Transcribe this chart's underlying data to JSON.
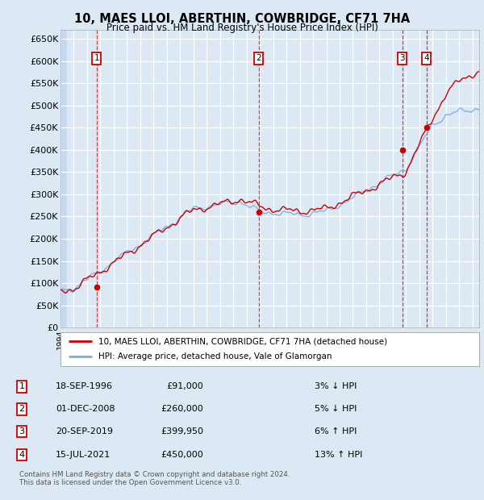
{
  "title": "10, MAES LLOI, ABERTHIN, COWBRIDGE, CF71 7HA",
  "subtitle": "Price paid vs. HM Land Registry's House Price Index (HPI)",
  "ylim": [
    0,
    670000
  ],
  "xlim_start": 1994.0,
  "xlim_end": 2025.5,
  "yticks": [
    0,
    50000,
    100000,
    150000,
    200000,
    250000,
    300000,
    350000,
    400000,
    450000,
    500000,
    550000,
    600000,
    650000
  ],
  "ytick_labels": [
    "£0",
    "£50K",
    "£100K",
    "£150K",
    "£200K",
    "£250K",
    "£300K",
    "£350K",
    "£400K",
    "£450K",
    "£500K",
    "£550K",
    "£600K",
    "£650K"
  ],
  "background_color": "#dce9f5",
  "plot_bg_color": "#dce9f5",
  "grid_color": "#ffffff",
  "hatch_color": "#c5d8ed",
  "sale_color": "#cc0000",
  "hpi_color": "#7aaddd",
  "sale_marker_color": "#cc0000",
  "annotation_box_color": "#cc0000",
  "vline_color": "#cc0000",
  "legend_box_color": "#ffffff",
  "transactions": [
    {
      "date": 1996.72,
      "price": 91000,
      "label": "1"
    },
    {
      "date": 2008.92,
      "price": 260000,
      "label": "2"
    },
    {
      "date": 2019.72,
      "price": 399950,
      "label": "3"
    },
    {
      "date": 2021.54,
      "price": 450000,
      "label": "4"
    }
  ],
  "table_rows": [
    {
      "num": "1",
      "date": "18-SEP-1996",
      "price": "£91,000",
      "hpi": "3% ↓ HPI"
    },
    {
      "num": "2",
      "date": "01-DEC-2008",
      "price": "£260,000",
      "hpi": "5% ↓ HPI"
    },
    {
      "num": "3",
      "date": "20-SEP-2019",
      "price": "£399,950",
      "hpi": "6% ↑ HPI"
    },
    {
      "num": "4",
      "date": "15-JUL-2021",
      "price": "£450,000",
      "hpi": "13% ↑ HPI"
    }
  ],
  "legend_line1": "10, MAES LLOI, ABERTHIN, COWBRIDGE, CF71 7HA (detached house)",
  "legend_line2": "HPI: Average price, detached house, Vale of Glamorgan",
  "footer": "Contains HM Land Registry data © Crown copyright and database right 2024.\nThis data is licensed under the Open Government Licence v3.0."
}
